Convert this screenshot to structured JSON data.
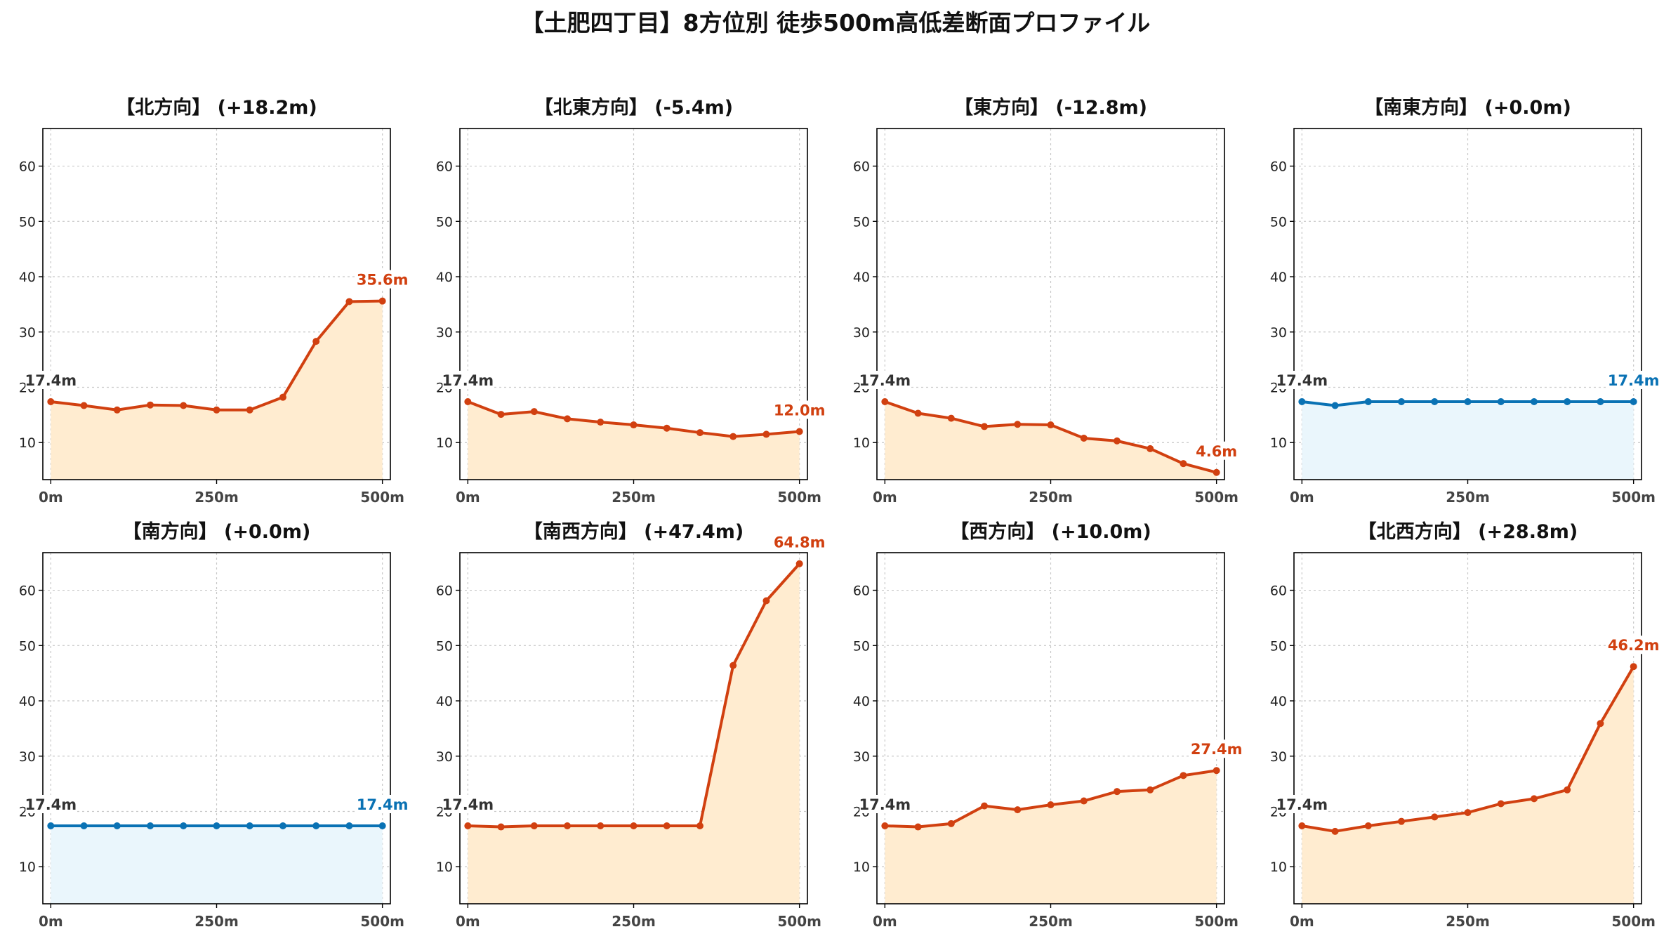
{
  "title": "【土肥四丁目】8方位別 徒歩500m高低差断面プロファイル",
  "colors": {
    "change_line": "#d14010",
    "change_fill": "#ffecd0",
    "flat_line": "#0a72b4",
    "flat_fill": "#eaf6fc",
    "start_label": "#333333",
    "grid": "#c8c8c8",
    "axes": "#000000"
  },
  "chart_data": [
    {
      "type": "area",
      "title": "【北方向】 (+18.2m)",
      "status": "change",
      "x": [
        0,
        50,
        100,
        150,
        200,
        250,
        300,
        350,
        400,
        450,
        500
      ],
      "y": [
        17.4,
        16.7,
        15.9,
        16.8,
        16.7,
        15.9,
        15.9,
        18.2,
        28.3,
        35.5,
        35.6
      ],
      "start_label": "17.4m",
      "end_label": "35.6m",
      "xticks": [
        0,
        250,
        500
      ],
      "xtick_labels": [
        "0m",
        "250m",
        "500m"
      ],
      "yticks": [
        10,
        20,
        30,
        40,
        50,
        60
      ],
      "ytick_labels": [
        "10",
        "20",
        "30",
        "40",
        "50",
        "60"
      ],
      "xlim": [
        -12,
        512
      ],
      "ylim": [
        3.3,
        66.8
      ],
      "grid": true
    },
    {
      "type": "area",
      "title": "【北東方向】 (-5.4m)",
      "status": "change",
      "x": [
        0,
        50,
        100,
        150,
        200,
        250,
        300,
        350,
        400,
        450,
        500
      ],
      "y": [
        17.4,
        15.1,
        15.6,
        14.3,
        13.7,
        13.2,
        12.6,
        11.8,
        11.1,
        11.5,
        12.0
      ],
      "start_label": "17.4m",
      "end_label": "12.0m",
      "xticks": [
        0,
        250,
        500
      ],
      "xtick_labels": [
        "0m",
        "250m",
        "500m"
      ],
      "yticks": [
        10,
        20,
        30,
        40,
        50,
        60
      ],
      "ytick_labels": [
        "10",
        "20",
        "30",
        "40",
        "50",
        "60"
      ],
      "xlim": [
        -12,
        512
      ],
      "ylim": [
        3.3,
        66.8
      ],
      "grid": true
    },
    {
      "type": "area",
      "title": "【東方向】 (-12.8m)",
      "status": "change",
      "x": [
        0,
        50,
        100,
        150,
        200,
        250,
        300,
        350,
        400,
        450,
        500
      ],
      "y": [
        17.4,
        15.3,
        14.4,
        12.9,
        13.3,
        13.2,
        10.8,
        10.3,
        8.9,
        6.2,
        4.6
      ],
      "start_label": "17.4m",
      "end_label": "4.6m",
      "xticks": [
        0,
        250,
        500
      ],
      "xtick_labels": [
        "0m",
        "250m",
        "500m"
      ],
      "yticks": [
        10,
        20,
        30,
        40,
        50,
        60
      ],
      "ytick_labels": [
        "10",
        "20",
        "30",
        "40",
        "50",
        "60"
      ],
      "xlim": [
        -12,
        512
      ],
      "ylim": [
        3.3,
        66.8
      ],
      "grid": true
    },
    {
      "type": "area",
      "title": "【南東方向】 (+0.0m)",
      "status": "flat",
      "x": [
        0,
        50,
        100,
        150,
        200,
        250,
        300,
        350,
        400,
        450,
        500
      ],
      "y": [
        17.4,
        16.7,
        17.4,
        17.4,
        17.4,
        17.4,
        17.4,
        17.4,
        17.4,
        17.4,
        17.4
      ],
      "start_label": "17.4m",
      "end_label": "17.4m",
      "xticks": [
        0,
        250,
        500
      ],
      "xtick_labels": [
        "0m",
        "250m",
        "500m"
      ],
      "yticks": [
        10,
        20,
        30,
        40,
        50,
        60
      ],
      "ytick_labels": [
        "10",
        "20",
        "30",
        "40",
        "50",
        "60"
      ],
      "xlim": [
        -12,
        512
      ],
      "ylim": [
        3.3,
        66.8
      ],
      "grid": true
    },
    {
      "type": "area",
      "title": "【南方向】 (+0.0m)",
      "status": "flat",
      "x": [
        0,
        50,
        100,
        150,
        200,
        250,
        300,
        350,
        400,
        450,
        500
      ],
      "y": [
        17.4,
        17.4,
        17.4,
        17.4,
        17.4,
        17.4,
        17.4,
        17.4,
        17.4,
        17.4,
        17.4
      ],
      "start_label": "17.4m",
      "end_label": "17.4m",
      "xticks": [
        0,
        250,
        500
      ],
      "xtick_labels": [
        "0m",
        "250m",
        "500m"
      ],
      "yticks": [
        10,
        20,
        30,
        40,
        50,
        60
      ],
      "ytick_labels": [
        "10",
        "20",
        "30",
        "40",
        "50",
        "60"
      ],
      "xlim": [
        -12,
        512
      ],
      "ylim": [
        3.3,
        66.8
      ],
      "grid": true
    },
    {
      "type": "area",
      "title": "【南西方向】 (+47.4m)",
      "status": "change",
      "x": [
        0,
        50,
        100,
        150,
        200,
        250,
        300,
        350,
        400,
        450,
        500
      ],
      "y": [
        17.4,
        17.2,
        17.4,
        17.4,
        17.4,
        17.4,
        17.4,
        17.4,
        46.4,
        58.1,
        64.8
      ],
      "start_label": "17.4m",
      "end_label": "64.8m",
      "xticks": [
        0,
        250,
        500
      ],
      "xtick_labels": [
        "0m",
        "250m",
        "500m"
      ],
      "yticks": [
        10,
        20,
        30,
        40,
        50,
        60
      ],
      "ytick_labels": [
        "10",
        "20",
        "30",
        "40",
        "50",
        "60"
      ],
      "xlim": [
        -12,
        512
      ],
      "ylim": [
        3.3,
        66.8
      ],
      "grid": true
    },
    {
      "type": "area",
      "title": "【西方向】 (+10.0m)",
      "status": "change",
      "x": [
        0,
        50,
        100,
        150,
        200,
        250,
        300,
        350,
        400,
        450,
        500
      ],
      "y": [
        17.4,
        17.2,
        17.8,
        21.0,
        20.3,
        21.2,
        21.9,
        23.6,
        23.9,
        26.5,
        27.4
      ],
      "start_label": "17.4m",
      "end_label": "27.4m",
      "xticks": [
        0,
        250,
        500
      ],
      "xtick_labels": [
        "0m",
        "250m",
        "500m"
      ],
      "yticks": [
        10,
        20,
        30,
        40,
        50,
        60
      ],
      "ytick_labels": [
        "10",
        "20",
        "30",
        "40",
        "50",
        "60"
      ],
      "xlim": [
        -12,
        512
      ],
      "ylim": [
        3.3,
        66.8
      ],
      "grid": true
    },
    {
      "type": "area",
      "title": "【北西方向】 (+28.8m)",
      "status": "change",
      "x": [
        0,
        50,
        100,
        150,
        200,
        250,
        300,
        350,
        400,
        450,
        500
      ],
      "y": [
        17.4,
        16.4,
        17.4,
        18.2,
        19.0,
        19.8,
        21.4,
        22.3,
        23.9,
        35.9,
        46.2
      ],
      "start_label": "17.4m",
      "end_label": "46.2m",
      "xticks": [
        0,
        250,
        500
      ],
      "xtick_labels": [
        "0m",
        "250m",
        "500m"
      ],
      "yticks": [
        10,
        20,
        30,
        40,
        50,
        60
      ],
      "ytick_labels": [
        "10",
        "20",
        "30",
        "40",
        "50",
        "60"
      ],
      "xlim": [
        -12,
        512
      ],
      "ylim": [
        3.3,
        66.8
      ],
      "grid": true
    }
  ]
}
